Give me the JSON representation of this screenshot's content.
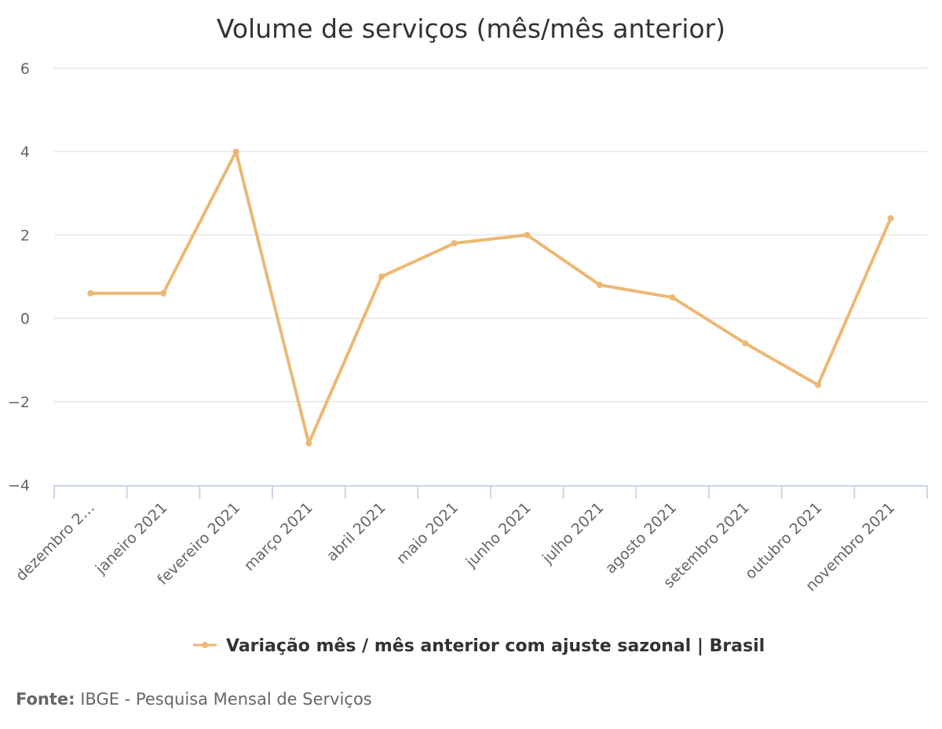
{
  "chart_data": {
    "type": "line",
    "title": "Volume de serviços (mês/mês anterior)",
    "xlabel": "",
    "ylabel": "",
    "ylim": [
      -4,
      6
    ],
    "yticks": [
      6,
      4,
      2,
      0,
      -2,
      -4
    ],
    "ytick_labels": [
      "6",
      "4",
      "2",
      "0",
      "−2",
      "−4"
    ],
    "categories": [
      "dezembro 2…",
      "janeiro 2021",
      "fevereiro 2021",
      "março 2021",
      "abril 2021",
      "maio 2021",
      "junho 2021",
      "julho 2021",
      "agosto 2021",
      "setembro 2021",
      "outubro 2021",
      "novembro 2021"
    ],
    "series": [
      {
        "name": "Variação mês / mês anterior com ajuste sazonal | Brasil",
        "color": "#ecb874",
        "values": [
          0.6,
          0.6,
          4.0,
          -3.0,
          1.0,
          1.8,
          2.0,
          0.8,
          0.5,
          -0.6,
          -1.6,
          2.4
        ]
      }
    ],
    "grid": true,
    "legend": "bottom-center"
  },
  "credits": {
    "label": "Fonte:",
    "text": " IBGE - Pesquisa Mensal de Serviços"
  }
}
